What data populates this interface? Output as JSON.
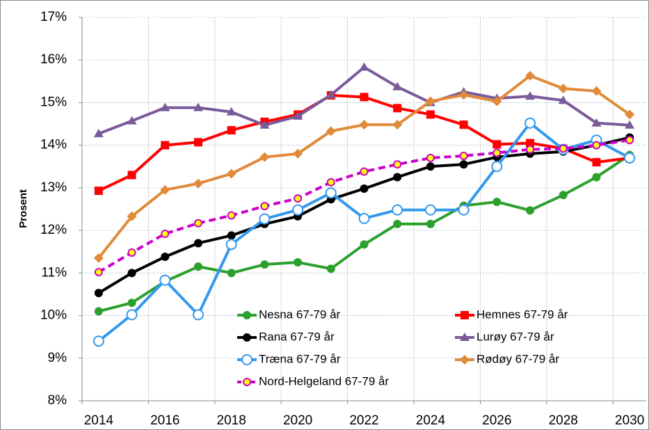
{
  "chart_data": {
    "type": "line",
    "y_label": "Prosent",
    "x": [
      2014,
      2015,
      2016,
      2017,
      2018,
      2019,
      2020,
      2021,
      2022,
      2023,
      2024,
      2025,
      2026,
      2027,
      2028,
      2029,
      2030
    ],
    "xlim": [
      2013.5,
      2030.5
    ],
    "xticks": [
      2014,
      2016,
      2018,
      2020,
      2022,
      2024,
      2026,
      2028,
      2030
    ],
    "ylim": [
      8,
      17
    ],
    "yticks": [
      {
        "value": 8,
        "label": "8%"
      },
      {
        "value": 9,
        "label": "9%"
      },
      {
        "value": 10,
        "label": "10%"
      },
      {
        "value": 11,
        "label": "11%"
      },
      {
        "value": 12,
        "label": "12%"
      },
      {
        "value": 13,
        "label": "13%"
      },
      {
        "value": 14,
        "label": "14%"
      },
      {
        "value": 15,
        "label": "15%"
      },
      {
        "value": 16,
        "label": "16%"
      },
      {
        "value": 17,
        "label": "17%"
      }
    ],
    "grid": true,
    "series": [
      {
        "name": "Nesna 67-79 år",
        "color": "#2ca02c",
        "marker": "circle",
        "values": [
          10.1,
          10.3,
          10.8,
          11.15,
          11.0,
          11.2,
          11.25,
          11.1,
          11.67,
          12.15,
          12.15,
          12.58,
          12.67,
          12.47,
          12.83,
          13.25,
          13.77
        ]
      },
      {
        "name": "Hemnes 67-79 år",
        "color": "#ff0000",
        "marker": "square",
        "values": [
          12.93,
          13.3,
          14.0,
          14.07,
          14.35,
          14.55,
          14.72,
          15.17,
          15.13,
          14.87,
          14.72,
          14.48,
          14.02,
          14.05,
          13.92,
          13.6,
          13.7
        ]
      },
      {
        "name": "Rana 67-79 år",
        "color": "#000000",
        "marker": "circle",
        "values": [
          10.53,
          11.0,
          11.38,
          11.7,
          11.88,
          12.15,
          12.33,
          12.73,
          12.98,
          13.25,
          13.5,
          13.55,
          13.72,
          13.8,
          13.85,
          14.0,
          14.18
        ]
      },
      {
        "name": "Lurøy 67-79 år",
        "color": "#7a5a9a",
        "marker": "triangle",
        "values": [
          14.27,
          14.57,
          14.88,
          14.88,
          14.78,
          14.47,
          14.68,
          15.18,
          15.83,
          15.37,
          15.0,
          15.25,
          15.1,
          15.15,
          15.05,
          14.52,
          14.47
        ]
      },
      {
        "name": "Træna 67-79 år",
        "color": "#3399ee",
        "marker": "open-circle",
        "values": [
          9.4,
          10.02,
          10.83,
          10.02,
          11.67,
          12.27,
          12.48,
          12.88,
          12.28,
          12.48,
          12.48,
          12.48,
          13.5,
          14.52,
          13.9,
          14.12,
          13.7
        ]
      },
      {
        "name": "Rødøy 67-79 år",
        "color": "#e08a3a",
        "marker": "diamond",
        "values": [
          11.35,
          12.33,
          12.95,
          13.1,
          13.33,
          13.72,
          13.8,
          14.33,
          14.48,
          14.48,
          15.03,
          15.18,
          15.03,
          15.63,
          15.33,
          15.27,
          14.72
        ]
      },
      {
        "name": "Nord-Helgeland 67-79 år",
        "color": "#cc00cc",
        "marker": "yellow-circle",
        "dashed": true,
        "values": [
          11.02,
          11.48,
          11.92,
          12.17,
          12.35,
          12.57,
          12.75,
          13.13,
          13.38,
          13.55,
          13.7,
          13.75,
          13.82,
          13.9,
          13.92,
          14.0,
          14.12
        ]
      }
    ]
  }
}
